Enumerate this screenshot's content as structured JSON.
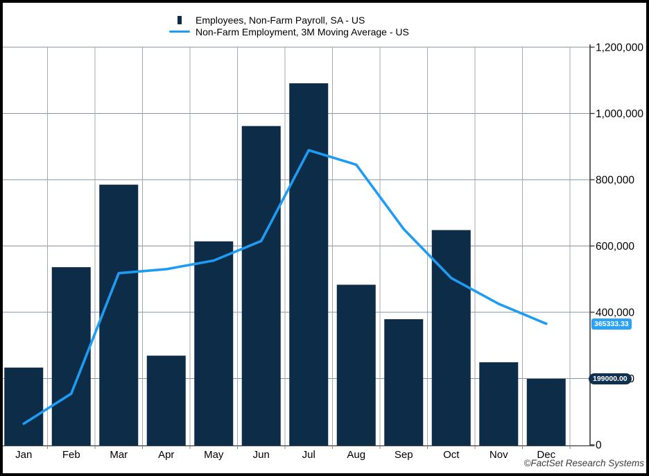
{
  "legend": {
    "items": [
      {
        "label": "Employees, Non-Farm Payroll, SA - US",
        "marker": "bar-swatch"
      },
      {
        "label": "Non-Farm Employment, 3M Moving Average - US",
        "marker": "line-swatch"
      }
    ]
  },
  "footer": {
    "copyright": "©FactSet Research Systems"
  },
  "colors": {
    "bar": "#0D2C48",
    "line": "#1E9BF2",
    "grid_h": "#8692A0",
    "grid_v": "#9FA8B3",
    "axis": "#2E2E2E",
    "x_axis": "#3A3A3A",
    "month_tick": "#8A8A8A",
    "pill_line_bg": "#2AA2F5",
    "pill_bar_bg": "#10304F",
    "label_text": "#000000"
  },
  "chart_data": {
    "type": "combo",
    "title": "",
    "xlabel": "",
    "ylabel": "",
    "categories": [
      "Jan",
      "Feb",
      "Mar",
      "Apr",
      "May",
      "Jun",
      "Jul",
      "Aug",
      "Sep",
      "Oct",
      "Nov",
      "Dec"
    ],
    "series": [
      {
        "name": "Employees, Non-Farm Payroll, SA - US",
        "type": "bar",
        "color": "#0D2C48",
        "values": [
          233000,
          536000,
          785000,
          269000,
          614000,
          962000,
          1091000,
          483000,
          379000,
          648000,
          249000,
          199000
        ]
      },
      {
        "name": "Non-Farm Employment, 3M Moving Average - US",
        "type": "line",
        "color": "#1E9BF2",
        "values": [
          63666.67,
          154333.33,
          518000,
          530000,
          556000,
          615000,
          889000,
          845333.33,
          651000,
          503333.33,
          425333.33,
          365333.33
        ]
      }
    ],
    "ylim": [
      0,
      1200000
    ],
    "y_tick_values": [
      0,
      200000,
      400000,
      600000,
      800000,
      1000000,
      1200000
    ],
    "y_ticks": [
      "0",
      "200,000",
      "400,000",
      "600,000",
      "800,000",
      "1,000,000",
      "1,200,000"
    ],
    "y_axis_side": "right",
    "grid": true,
    "legend_position": "top",
    "annotations": [
      {
        "text": "365333.33",
        "series": "line",
        "value": 365333.33,
        "bg": "#2AA2F5"
      },
      {
        "text": "199000.00",
        "series": "bar",
        "value": 199000,
        "bg": "#10304F"
      }
    ]
  }
}
